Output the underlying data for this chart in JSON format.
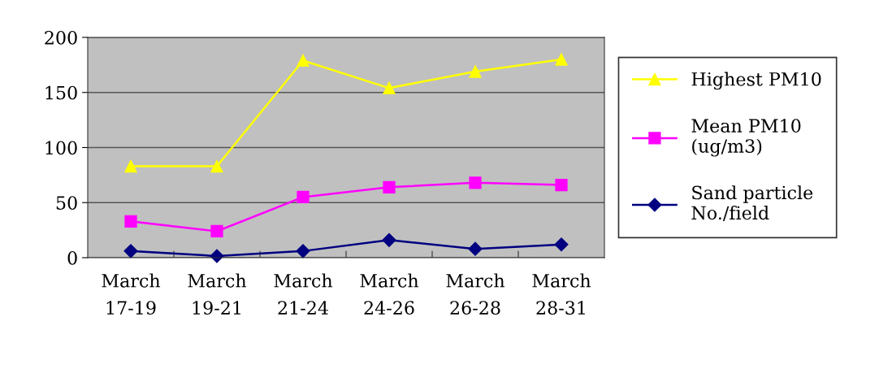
{
  "chart_data": {
    "type": "line",
    "categories": [
      "March\n17-19",
      "March\n19-21",
      "March\n21-24",
      "March\n24-26",
      "March\n26-28",
      "March\n28-31"
    ],
    "series": [
      {
        "name": "Highest PM10",
        "color": "#ffff00",
        "marker": "triangle",
        "values": [
          83,
          83,
          179,
          154,
          169,
          180
        ]
      },
      {
        "name": "Mean PM10\n(ug/m3)",
        "color": "#ff00ff",
        "marker": "square",
        "values": [
          33,
          24,
          55,
          64,
          68,
          66
        ]
      },
      {
        "name": "Sand particle\nNo./field",
        "color": "#000080",
        "marker": "diamond",
        "values": [
          6,
          1.5,
          6,
          16,
          8,
          12
        ]
      }
    ],
    "ylim": [
      0,
      200
    ],
    "yticks": [
      0,
      50,
      100,
      150,
      200
    ],
    "grid": "y",
    "legend": "right",
    "line_style": "solid"
  }
}
